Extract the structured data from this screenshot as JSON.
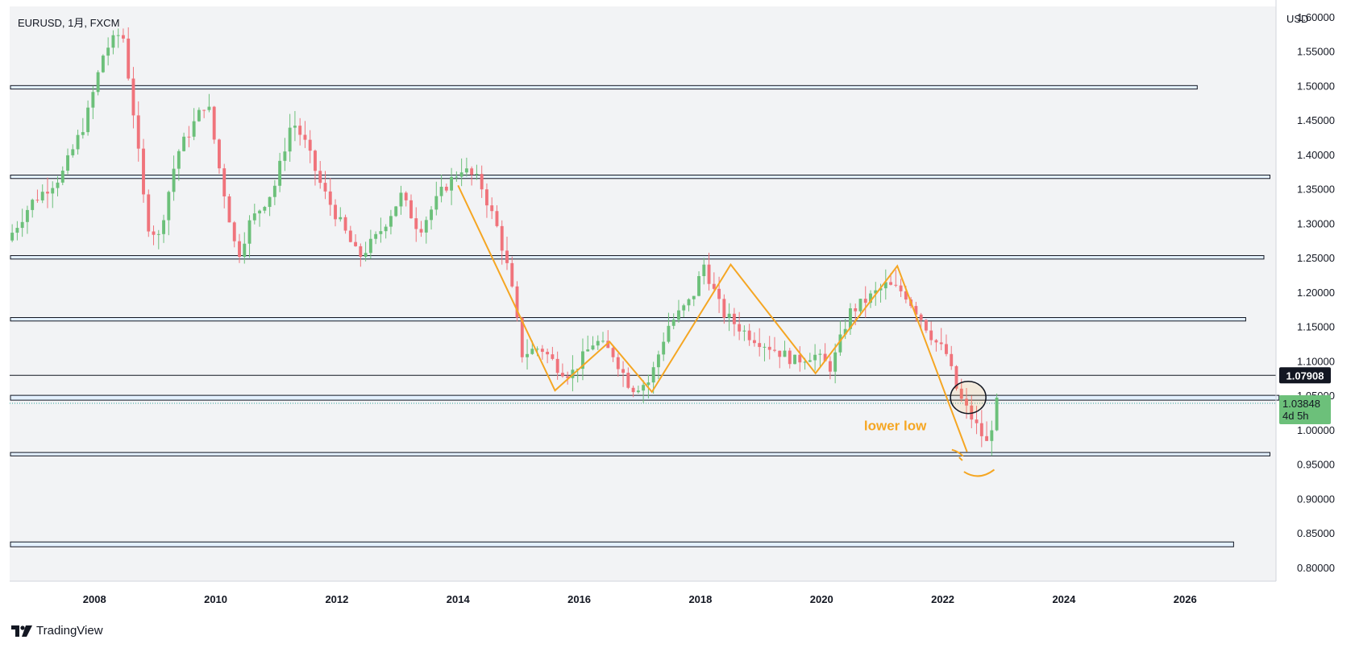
{
  "chart": {
    "symbol_label": "EURUSD, 1月, FXCM",
    "currency_label": "USD",
    "annotation_label": "lower low",
    "brand_name": "TradingView",
    "last_price_label": "1.03848",
    "countdown_label": "4d 5h",
    "level_price_label": "1.07908"
  },
  "chart_data": {
    "type": "candlestick",
    "title": "EURUSD, 1月, FXCM",
    "ylabel": "USD",
    "x_range": [
      2006.6,
      2027.5
    ],
    "y_range": [
      0.78,
      1.615
    ],
    "x_ticks": [
      "2008",
      "2010",
      "2012",
      "2014",
      "2016",
      "2018",
      "2020",
      "2022",
      "2024",
      "2026"
    ],
    "y_ticks": [
      "1.60000",
      "1.55000",
      "1.50000",
      "1.45000",
      "1.40000",
      "1.35000",
      "1.30000",
      "1.25000",
      "1.20000",
      "1.15000",
      "1.10000",
      "1.05000",
      "1.00000",
      "0.95000",
      "0.90000",
      "0.85000",
      "0.80000"
    ],
    "last_price": 1.03848,
    "marked_level": 1.07908,
    "horizontal_zones": [
      {
        "top": 1.5,
        "bottom": 1.495,
        "x_end": 2026.2
      },
      {
        "top": 1.37,
        "bottom": 1.365,
        "x_end": 2027.4
      },
      {
        "top": 1.253,
        "bottom": 1.248,
        "x_end": 2027.3
      },
      {
        "top": 1.163,
        "bottom": 1.158,
        "x_end": 2027.0
      },
      {
        "top": 1.05,
        "bottom": 1.043,
        "x_end": 2027.55
      },
      {
        "top": 0.967,
        "bottom": 0.962,
        "x_end": 2027.4
      },
      {
        "top": 0.837,
        "bottom": 0.83,
        "x_end": 2026.8
      }
    ],
    "zigzag_lines": [
      [
        [
          2014.0,
          1.355
        ],
        [
          2015.6,
          1.057
        ],
        [
          2016.5,
          1.128
        ],
        [
          2017.2,
          1.055
        ],
        [
          2018.5,
          1.24
        ],
        [
          2019.9,
          1.082
        ],
        [
          2021.25,
          1.238
        ],
        [
          2022.4,
          0.968
        ]
      ]
    ],
    "price_path": [
      [
        2006.6,
        1.275
      ],
      [
        2007.0,
        1.33
      ],
      [
        2007.5,
        1.37
      ],
      [
        2007.9,
        1.45
      ],
      [
        2008.2,
        1.55
      ],
      [
        2008.5,
        1.58
      ],
      [
        2008.7,
        1.45
      ],
      [
        2008.9,
        1.3
      ],
      [
        2009.1,
        1.28
      ],
      [
        2009.4,
        1.4
      ],
      [
        2009.9,
        1.48
      ],
      [
        2010.1,
        1.38
      ],
      [
        2010.4,
        1.25
      ],
      [
        2010.6,
        1.3
      ],
      [
        2011.0,
        1.35
      ],
      [
        2011.3,
        1.45
      ],
      [
        2011.5,
        1.42
      ],
      [
        2011.8,
        1.35
      ],
      [
        2012.1,
        1.3
      ],
      [
        2012.4,
        1.25
      ],
      [
        2012.7,
        1.28
      ],
      [
        2013.1,
        1.34
      ],
      [
        2013.4,
        1.29
      ],
      [
        2013.8,
        1.35
      ],
      [
        2014.1,
        1.38
      ],
      [
        2014.4,
        1.36
      ],
      [
        2014.7,
        1.29
      ],
      [
        2014.9,
        1.22
      ],
      [
        2015.1,
        1.11
      ],
      [
        2015.4,
        1.12
      ],
      [
        2015.7,
        1.09
      ],
      [
        2015.9,
        1.08
      ],
      [
        2016.3,
        1.13
      ],
      [
        2016.6,
        1.11
      ],
      [
        2016.9,
        1.06
      ],
      [
        2017.2,
        1.07
      ],
      [
        2017.5,
        1.15
      ],
      [
        2017.9,
        1.19
      ],
      [
        2018.1,
        1.24
      ],
      [
        2018.4,
        1.17
      ],
      [
        2018.8,
        1.14
      ],
      [
        2019.2,
        1.12
      ],
      [
        2019.6,
        1.1
      ],
      [
        2019.9,
        1.11
      ],
      [
        2020.2,
        1.09
      ],
      [
        2020.5,
        1.17
      ],
      [
        2020.8,
        1.19
      ],
      [
        2021.1,
        1.21
      ],
      [
        2021.4,
        1.2
      ],
      [
        2021.7,
        1.16
      ],
      [
        2021.9,
        1.13
      ],
      [
        2022.1,
        1.11
      ],
      [
        2022.3,
        1.05
      ],
      [
        2022.5,
        1.02
      ],
      [
        2022.7,
        0.99
      ],
      [
        2022.8,
        0.975
      ],
      [
        2022.9,
        1.038
      ]
    ]
  }
}
